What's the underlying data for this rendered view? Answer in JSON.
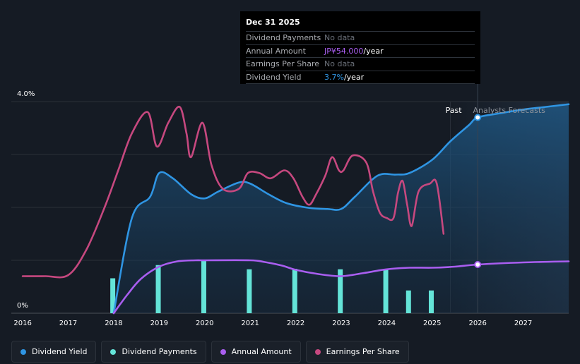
{
  "tooltip": {
    "date": "Dec 31 2025",
    "rows": [
      {
        "label": "Dividend Payments",
        "value": "No data",
        "number": "",
        "unit": ""
      },
      {
        "label": "Annual Amount",
        "value": "",
        "number": "JP¥54.000",
        "unit": "/year",
        "color": "#a95ef0"
      },
      {
        "label": "Earnings Per Share",
        "value": "No data",
        "number": "",
        "unit": ""
      },
      {
        "label": "Dividend Yield",
        "value": "",
        "number": "3.7%",
        "unit": "/year",
        "color": "#2f95e3"
      }
    ]
  },
  "regions": {
    "past": "Past",
    "forecast": "Analysts Forecasts"
  },
  "legend": [
    {
      "label": "Dividend Yield",
      "color": "#2f95e3"
    },
    {
      "label": "Dividend Payments",
      "color": "#64e4d8"
    },
    {
      "label": "Annual Amount",
      "color": "#a95ef0"
    },
    {
      "label": "Earnings Per Share",
      "color": "#c6487f"
    }
  ],
  "chart_data": {
    "type": "line",
    "title": "",
    "y_axis": {
      "labels": [
        "4.0%",
        "0%"
      ],
      "min": 0,
      "max": 4.0
    },
    "x_axis": {
      "min": 2015.75,
      "max": 2028,
      "ticks": [
        "2016",
        "2017",
        "2018",
        "2019",
        "2020",
        "2021",
        "2022",
        "2023",
        "2024",
        "2025",
        "2026",
        "2027"
      ]
    },
    "forecast_start": 2025.4,
    "highlight_x": 2026.0,
    "series": [
      {
        "name": "Dividend Yield",
        "color": "#2f95e3",
        "unit": "%",
        "area": true,
        "points": [
          [
            2018.0,
            0.0
          ],
          [
            2018.4,
            1.8
          ],
          [
            2018.8,
            2.2
          ],
          [
            2019.0,
            2.65
          ],
          [
            2019.3,
            2.55
          ],
          [
            2019.7,
            2.25
          ],
          [
            2020.0,
            2.17
          ],
          [
            2020.3,
            2.3
          ],
          [
            2020.75,
            2.47
          ],
          [
            2021.0,
            2.45
          ],
          [
            2021.4,
            2.25
          ],
          [
            2021.8,
            2.08
          ],
          [
            2022.3,
            1.99
          ],
          [
            2022.7,
            1.97
          ],
          [
            2023.0,
            1.97
          ],
          [
            2023.3,
            2.2
          ],
          [
            2023.8,
            2.6
          ],
          [
            2024.2,
            2.62
          ],
          [
            2024.5,
            2.65
          ],
          [
            2025.0,
            2.9
          ],
          [
            2025.4,
            3.25
          ],
          [
            2025.8,
            3.55
          ],
          [
            2026.0,
            3.7
          ],
          [
            2026.5,
            3.78
          ],
          [
            2027.0,
            3.85
          ],
          [
            2027.5,
            3.9
          ],
          [
            2028.0,
            3.95
          ]
        ]
      },
      {
        "name": "Earnings Per Share",
        "color": "#c6487f",
        "unit": "%",
        "points": [
          [
            2016.0,
            0.7
          ],
          [
            2016.5,
            0.7
          ],
          [
            2017.0,
            0.72
          ],
          [
            2017.4,
            1.2
          ],
          [
            2017.8,
            2.0
          ],
          [
            2018.1,
            2.7
          ],
          [
            2018.4,
            3.4
          ],
          [
            2018.75,
            3.8
          ],
          [
            2018.95,
            3.15
          ],
          [
            2019.2,
            3.6
          ],
          [
            2019.45,
            3.9
          ],
          [
            2019.6,
            3.4
          ],
          [
            2019.7,
            2.95
          ],
          [
            2019.95,
            3.6
          ],
          [
            2020.15,
            2.8
          ],
          [
            2020.4,
            2.35
          ],
          [
            2020.75,
            2.35
          ],
          [
            2020.95,
            2.65
          ],
          [
            2021.2,
            2.65
          ],
          [
            2021.45,
            2.55
          ],
          [
            2021.75,
            2.7
          ],
          [
            2021.95,
            2.55
          ],
          [
            2022.15,
            2.2
          ],
          [
            2022.3,
            2.05
          ],
          [
            2022.45,
            2.25
          ],
          [
            2022.65,
            2.6
          ],
          [
            2022.8,
            2.95
          ],
          [
            2022.95,
            2.7
          ],
          [
            2023.05,
            2.7
          ],
          [
            2023.25,
            2.98
          ],
          [
            2023.55,
            2.85
          ],
          [
            2023.7,
            2.3
          ],
          [
            2023.85,
            1.9
          ],
          [
            2024.0,
            1.8
          ],
          [
            2024.15,
            1.8
          ],
          [
            2024.25,
            2.28
          ],
          [
            2024.35,
            2.5
          ],
          [
            2024.45,
            2.05
          ],
          [
            2024.55,
            1.65
          ],
          [
            2024.7,
            2.3
          ],
          [
            2024.95,
            2.45
          ],
          [
            2025.1,
            2.45
          ],
          [
            2025.25,
            1.5
          ]
        ]
      },
      {
        "name": "Annual Amount",
        "color": "#a95ef0",
        "unit": "%",
        "points": [
          [
            2018.0,
            0.0
          ],
          [
            2018.3,
            0.35
          ],
          [
            2018.6,
            0.65
          ],
          [
            2019.0,
            0.88
          ],
          [
            2019.4,
            0.98
          ],
          [
            2019.8,
            1.0
          ],
          [
            2020.0,
            1.0
          ],
          [
            2021.0,
            1.0
          ],
          [
            2021.3,
            0.97
          ],
          [
            2021.7,
            0.9
          ],
          [
            2022.0,
            0.82
          ],
          [
            2022.5,
            0.74
          ],
          [
            2023.0,
            0.7
          ],
          [
            2023.5,
            0.76
          ],
          [
            2024.0,
            0.83
          ],
          [
            2024.5,
            0.86
          ],
          [
            2025.0,
            0.86
          ],
          [
            2025.5,
            0.88
          ],
          [
            2026.0,
            0.92
          ],
          [
            2027.0,
            0.96
          ],
          [
            2028.0,
            0.98
          ]
        ]
      }
    ],
    "bars": {
      "name": "Dividend Payments",
      "color": "#64e4d8",
      "points": [
        [
          2017.98,
          0.66
        ],
        [
          2018.98,
          0.91
        ],
        [
          2019.98,
          0.99
        ],
        [
          2020.98,
          0.83
        ],
        [
          2021.98,
          0.84
        ],
        [
          2022.98,
          0.83
        ],
        [
          2023.98,
          0.84
        ],
        [
          2024.48,
          0.43
        ],
        [
          2024.98,
          0.43
        ]
      ]
    },
    "markers": [
      {
        "series": "Dividend Yield",
        "x": 2026.0,
        "y": 3.7,
        "fill": "#ffffff",
        "stroke": "#2f95e3"
      },
      {
        "series": "Annual Amount",
        "x": 2026.0,
        "y": 0.92,
        "fill": "#ffffff",
        "stroke": "#a95ef0"
      }
    ]
  }
}
